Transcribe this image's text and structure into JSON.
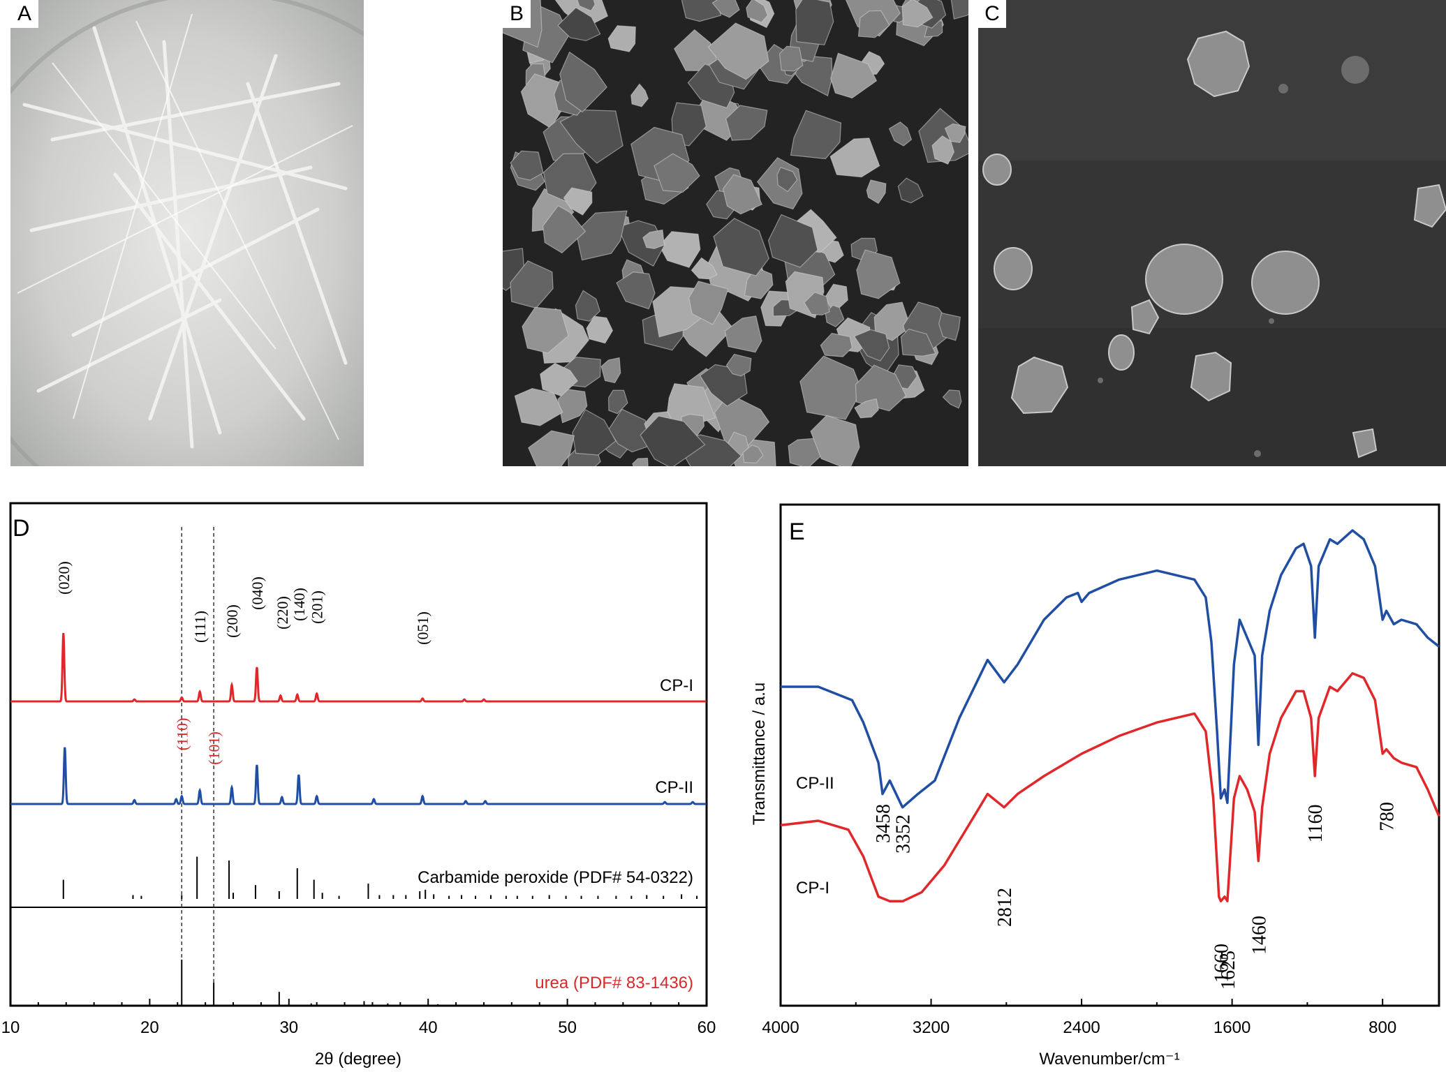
{
  "panels": {
    "a_letter": "A",
    "b_letter": "B",
    "c_letter": "C",
    "d_letter": "D",
    "e_letter": "E"
  },
  "colors": {
    "cp1": "#e0282b",
    "cp2": "#1f4ea3",
    "reference_urea": "#d62a2a",
    "axis": "#000000"
  },
  "chart_data": [
    {
      "type": "line",
      "panel": "D",
      "xlabel": "2θ (degree)",
      "ylabel": "",
      "xlim": [
        10,
        60
      ],
      "x_ticks": [
        10,
        20,
        30,
        40,
        50,
        60
      ],
      "reference_lines_2theta": [
        22.3,
        24.6
      ],
      "series": [
        {
          "name": "CP-I",
          "color": "#e0282b",
          "peaks": [
            {
              "x": 13.8,
              "h": 0.7
            },
            {
              "x": 18.9,
              "h": 0.02
            },
            {
              "x": 22.3,
              "h": 0.04
            },
            {
              "x": 23.6,
              "h": 0.1
            },
            {
              "x": 25.9,
              "h": 0.17
            },
            {
              "x": 27.7,
              "h": 0.35
            },
            {
              "x": 29.4,
              "h": 0.06
            },
            {
              "x": 30.6,
              "h": 0.07
            },
            {
              "x": 32.0,
              "h": 0.08
            },
            {
              "x": 39.6,
              "h": 0.03
            },
            {
              "x": 42.6,
              "h": 0.02
            },
            {
              "x": 44.0,
              "h": 0.02
            }
          ]
        },
        {
          "name": "CP-II",
          "color": "#1f4ea3",
          "peaks": [
            {
              "x": 13.9,
              "h": 0.58
            },
            {
              "x": 18.9,
              "h": 0.04
            },
            {
              "x": 21.9,
              "h": 0.05
            },
            {
              "x": 22.3,
              "h": 0.08
            },
            {
              "x": 23.6,
              "h": 0.14
            },
            {
              "x": 25.9,
              "h": 0.17
            },
            {
              "x": 27.7,
              "h": 0.4
            },
            {
              "x": 29.5,
              "h": 0.07
            },
            {
              "x": 30.7,
              "h": 0.3
            },
            {
              "x": 32.0,
              "h": 0.08
            },
            {
              "x": 36.1,
              "h": 0.05
            },
            {
              "x": 39.6,
              "h": 0.08
            },
            {
              "x": 42.7,
              "h": 0.03
            },
            {
              "x": 44.1,
              "h": 0.03
            },
            {
              "x": 57.0,
              "h": 0.02
            },
            {
              "x": 59.0,
              "h": 0.02
            }
          ]
        }
      ],
      "references": [
        {
          "label": "Carbamide peroxide (PDF# 54-0322)",
          "color": "#000000",
          "sticks": [
            {
              "x": 13.8,
              "h": 0.25
            },
            {
              "x": 18.8,
              "h": 0.05
            },
            {
              "x": 19.4,
              "h": 0.04
            },
            {
              "x": 22.3,
              "h": 0.05
            },
            {
              "x": 23.4,
              "h": 0.55
            },
            {
              "x": 25.7,
              "h": 0.5
            },
            {
              "x": 26.0,
              "h": 0.08
            },
            {
              "x": 27.6,
              "h": 0.18
            },
            {
              "x": 29.3,
              "h": 0.1
            },
            {
              "x": 30.6,
              "h": 0.4
            },
            {
              "x": 31.8,
              "h": 0.25
            },
            {
              "x": 32.4,
              "h": 0.08
            },
            {
              "x": 33.6,
              "h": 0.04
            },
            {
              "x": 35.7,
              "h": 0.2
            },
            {
              "x": 36.5,
              "h": 0.05
            },
            {
              "x": 37.5,
              "h": 0.05
            },
            {
              "x": 38.4,
              "h": 0.05
            },
            {
              "x": 39.4,
              "h": 0.1
            },
            {
              "x": 39.8,
              "h": 0.12
            },
            {
              "x": 40.4,
              "h": 0.06
            },
            {
              "x": 41.5,
              "h": 0.04
            },
            {
              "x": 42.4,
              "h": 0.05
            },
            {
              "x": 43.4,
              "h": 0.04
            },
            {
              "x": 44.5,
              "h": 0.05
            },
            {
              "x": 45.6,
              "h": 0.04
            },
            {
              "x": 46.4,
              "h": 0.04
            },
            {
              "x": 47.5,
              "h": 0.04
            },
            {
              "x": 48.7,
              "h": 0.05
            },
            {
              "x": 49.9,
              "h": 0.04
            },
            {
              "x": 51.0,
              "h": 0.04
            },
            {
              "x": 52.2,
              "h": 0.04
            },
            {
              "x": 53.5,
              "h": 0.04
            },
            {
              "x": 54.6,
              "h": 0.04
            },
            {
              "x": 55.7,
              "h": 0.05
            },
            {
              "x": 56.9,
              "h": 0.04
            },
            {
              "x": 58.2,
              "h": 0.06
            },
            {
              "x": 59.3,
              "h": 0.04
            }
          ]
        },
        {
          "label": "urea (PDF# 83-1436)",
          "color": "#d62a2a",
          "sticks": [
            {
              "x": 22.3,
              "h": 0.6
            },
            {
              "x": 24.6,
              "h": 0.3
            },
            {
              "x": 29.3,
              "h": 0.18
            },
            {
              "x": 31.6,
              "h": 0.03
            },
            {
              "x": 35.4,
              "h": 0.06
            },
            {
              "x": 37.1,
              "h": 0.03
            },
            {
              "x": 40.7,
              "h": 0.02
            }
          ]
        }
      ],
      "annotations": [
        {
          "text": "(020)",
          "x": 13.8,
          "series": "CP-I",
          "color": "#000000"
        },
        {
          "text": "(111)",
          "x": 23.6,
          "series": "CP-I",
          "color": "#000000"
        },
        {
          "text": "(200)",
          "x": 25.9,
          "series": "CP-I",
          "color": "#000000"
        },
        {
          "text": "(040)",
          "x": 27.7,
          "series": "CP-I",
          "color": "#000000"
        },
        {
          "text": "(220)",
          "x": 29.5,
          "series": "CP-I",
          "color": "#000000"
        },
        {
          "text": "(140)",
          "x": 30.7,
          "series": "CP-I",
          "color": "#000000"
        },
        {
          "text": "(201)",
          "x": 32.0,
          "series": "CP-I",
          "color": "#000000"
        },
        {
          "text": "(051)",
          "x": 39.6,
          "series": "CP-I",
          "color": "#000000"
        },
        {
          "text": "(110)",
          "x": 22.3,
          "series": "CP-II",
          "color": "#d62a2a"
        },
        {
          "text": "(101)",
          "x": 24.6,
          "series": "CP-II",
          "color": "#d62a2a"
        }
      ]
    },
    {
      "type": "line",
      "panel": "E",
      "xlabel": "Wavenumber/cm⁻¹",
      "ylabel": "Transmittance / a.u",
      "xlim": [
        4000,
        500
      ],
      "x_ticks": [
        4000,
        3200,
        2400,
        1600,
        800
      ],
      "series": [
        {
          "name": "CP-II",
          "color": "#1f4ea3",
          "points": [
            [
              4000,
              0.65
            ],
            [
              3800,
              0.65
            ],
            [
              3620,
              0.62
            ],
            [
              3560,
              0.57
            ],
            [
              3480,
              0.48
            ],
            [
              3458,
              0.41
            ],
            [
              3420,
              0.44
            ],
            [
              3352,
              0.38
            ],
            [
              3270,
              0.41
            ],
            [
              3180,
              0.44
            ],
            [
              3050,
              0.58
            ],
            [
              2900,
              0.71
            ],
            [
              2812,
              0.66
            ],
            [
              2740,
              0.7
            ],
            [
              2600,
              0.8
            ],
            [
              2480,
              0.85
            ],
            [
              2420,
              0.86
            ],
            [
              2400,
              0.84
            ],
            [
              2360,
              0.86
            ],
            [
              2200,
              0.89
            ],
            [
              2000,
              0.91
            ],
            [
              1800,
              0.89
            ],
            [
              1740,
              0.85
            ],
            [
              1710,
              0.75
            ],
            [
              1680,
              0.55
            ],
            [
              1660,
              0.4
            ],
            [
              1640,
              0.42
            ],
            [
              1625,
              0.39
            ],
            [
              1590,
              0.7
            ],
            [
              1560,
              0.8
            ],
            [
              1520,
              0.76
            ],
            [
              1480,
              0.72
            ],
            [
              1460,
              0.52
            ],
            [
              1440,
              0.72
            ],
            [
              1400,
              0.82
            ],
            [
              1340,
              0.9
            ],
            [
              1260,
              0.96
            ],
            [
              1220,
              0.97
            ],
            [
              1180,
              0.92
            ],
            [
              1160,
              0.76
            ],
            [
              1140,
              0.92
            ],
            [
              1080,
              0.98
            ],
            [
              1040,
              0.97
            ],
            [
              960,
              1.0
            ],
            [
              900,
              0.98
            ],
            [
              840,
              0.92
            ],
            [
              800,
              0.8
            ],
            [
              780,
              0.82
            ],
            [
              740,
              0.79
            ],
            [
              700,
              0.8
            ],
            [
              620,
              0.79
            ],
            [
              560,
              0.76
            ],
            [
              500,
              0.74
            ]
          ]
        },
        {
          "name": "CP-I",
          "color": "#e0282b",
          "points": [
            [
              4000,
              0.34
            ],
            [
              3800,
              0.35
            ],
            [
              3640,
              0.33
            ],
            [
              3560,
              0.27
            ],
            [
              3480,
              0.18
            ],
            [
              3420,
              0.17
            ],
            [
              3350,
              0.17
            ],
            [
              3250,
              0.19
            ],
            [
              3130,
              0.25
            ],
            [
              3000,
              0.34
            ],
            [
              2900,
              0.41
            ],
            [
              2812,
              0.38
            ],
            [
              2740,
              0.41
            ],
            [
              2600,
              0.45
            ],
            [
              2400,
              0.5
            ],
            [
              2200,
              0.54
            ],
            [
              2000,
              0.57
            ],
            [
              1800,
              0.59
            ],
            [
              1740,
              0.55
            ],
            [
              1700,
              0.4
            ],
            [
              1670,
              0.18
            ],
            [
              1660,
              0.17
            ],
            [
              1640,
              0.18
            ],
            [
              1625,
              0.17
            ],
            [
              1590,
              0.4
            ],
            [
              1560,
              0.45
            ],
            [
              1520,
              0.42
            ],
            [
              1480,
              0.37
            ],
            [
              1460,
              0.26
            ],
            [
              1440,
              0.38
            ],
            [
              1400,
              0.5
            ],
            [
              1340,
              0.58
            ],
            [
              1260,
              0.64
            ],
            [
              1220,
              0.64
            ],
            [
              1180,
              0.58
            ],
            [
              1160,
              0.45
            ],
            [
              1140,
              0.58
            ],
            [
              1080,
              0.65
            ],
            [
              1040,
              0.64
            ],
            [
              960,
              0.68
            ],
            [
              900,
              0.67
            ],
            [
              840,
              0.62
            ],
            [
              800,
              0.5
            ],
            [
              780,
              0.51
            ],
            [
              740,
              0.49
            ],
            [
              700,
              0.48
            ],
            [
              620,
              0.47
            ],
            [
              560,
              0.42
            ],
            [
              500,
              0.36
            ]
          ]
        }
      ],
      "annotations": [
        {
          "text": "3458",
          "x": 3458,
          "series": "CP-II"
        },
        {
          "text": "3352",
          "x": 3352,
          "series": "CP-II"
        },
        {
          "text": "2812",
          "x": 2812,
          "series": "CP-I"
        },
        {
          "text": "1660",
          "x": 1660,
          "series": "CP-I"
        },
        {
          "text": "1625",
          "x": 1625,
          "series": "CP-I"
        },
        {
          "text": "1460",
          "x": 1460,
          "series": "CP-I"
        },
        {
          "text": "1160",
          "x": 1160,
          "series": "CP-II"
        },
        {
          "text": "780",
          "x": 780,
          "series": "CP-II"
        }
      ]
    }
  ]
}
